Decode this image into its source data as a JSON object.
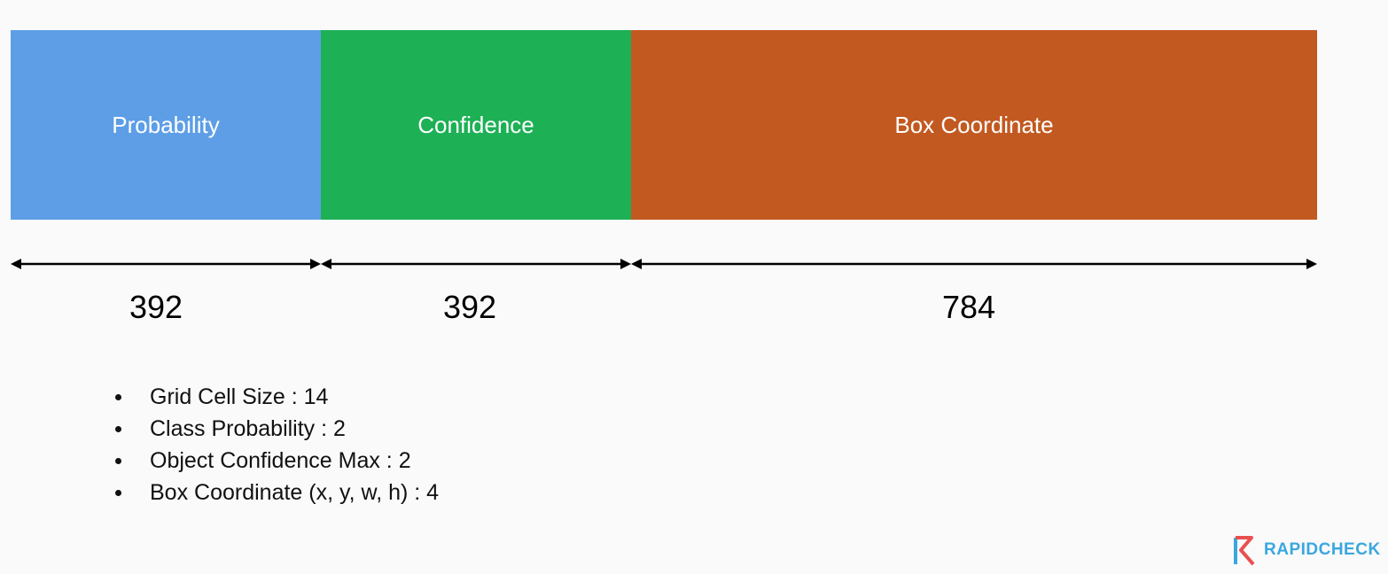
{
  "segments": [
    {
      "label": "Probability",
      "value": "392",
      "color": "#5d9ee6"
    },
    {
      "label": "Confidence",
      "value": "392",
      "color": "#1db055"
    },
    {
      "label": "Box Coordinate",
      "value": "784",
      "color": "#c25920"
    }
  ],
  "bullets": [
    "Grid Cell Size : 14",
    "Class Probability : 2",
    "Object Confidence Max : 2",
    "Box Coordinate (x, y, w, h) : 4"
  ],
  "logo": {
    "text": "RAPIDCHECK",
    "colors": {
      "primary": "#3aa7e0",
      "accent": "#e8504f"
    }
  }
}
